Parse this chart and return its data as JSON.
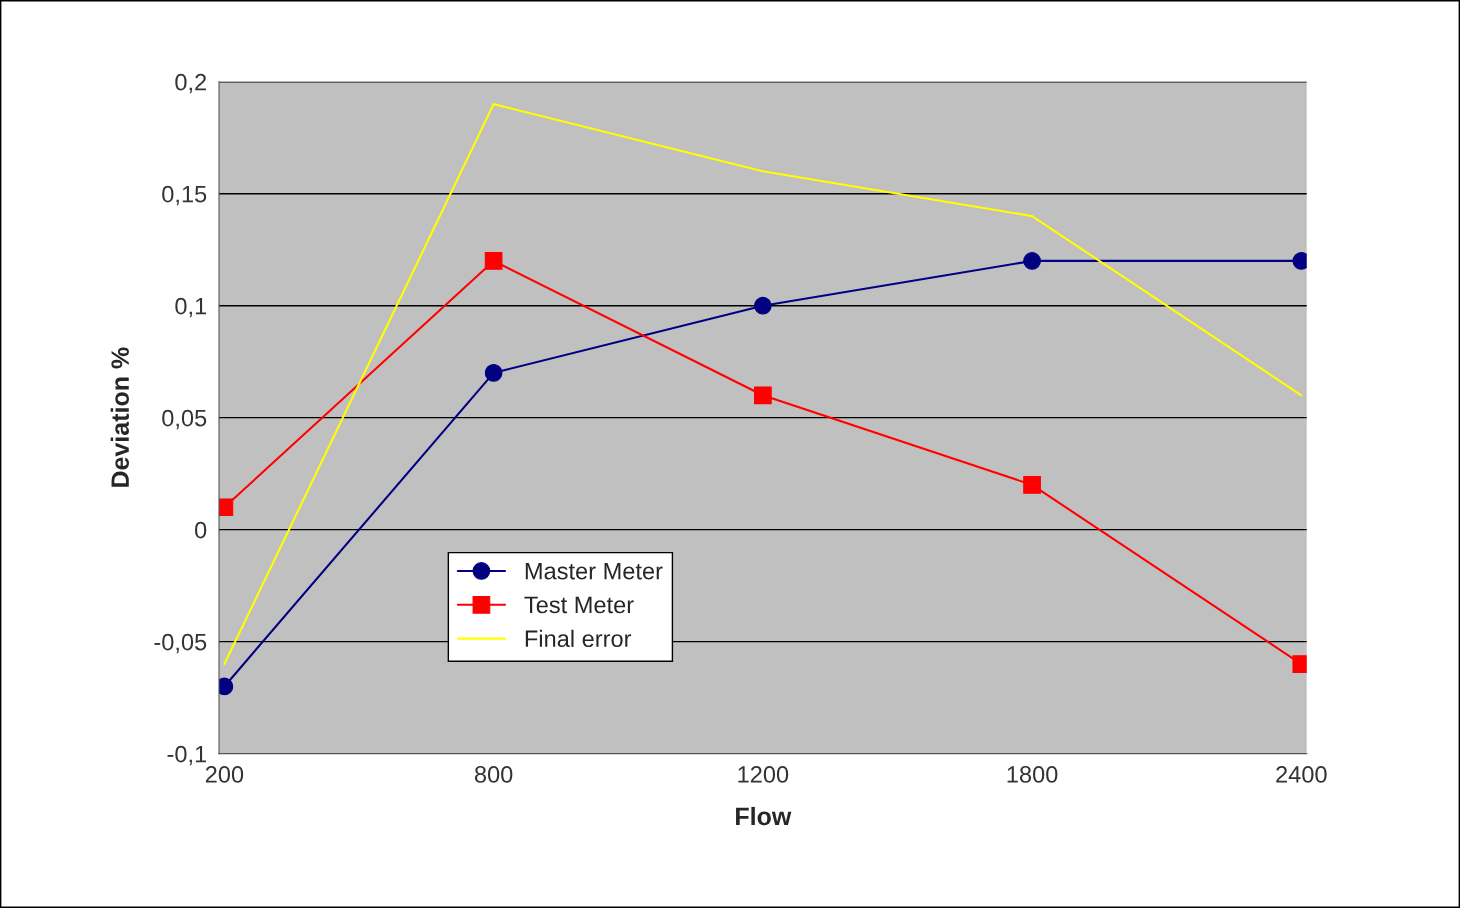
{
  "chart_data": {
    "type": "line",
    "xlabel": "Flow",
    "ylabel": "Deviation %",
    "categories": [
      "200",
      "800",
      "1200",
      "1800",
      "2400"
    ],
    "series": [
      {
        "name": "Master Meter",
        "color": "#000080",
        "marker": "circle",
        "values": [
          -0.07,
          0.07,
          0.1,
          0.12,
          0.12
        ]
      },
      {
        "name": "Test Meter",
        "color": "#ff0000",
        "marker": "square",
        "values": [
          0.01,
          0.12,
          0.06,
          0.02,
          -0.06
        ]
      },
      {
        "name": "Final error",
        "color": "#ffff00",
        "marker": "none",
        "values": [
          -0.06,
          0.19,
          0.16,
          0.14,
          0.06
        ]
      }
    ],
    "ylim": [
      -0.1,
      0.2
    ],
    "yticks": [
      {
        "value": -0.1,
        "label": "-0,1"
      },
      {
        "value": -0.05,
        "label": "-0,05"
      },
      {
        "value": 0,
        "label": "0"
      },
      {
        "value": 0.05,
        "label": "0,05"
      },
      {
        "value": 0.1,
        "label": "0,1"
      },
      {
        "value": 0.15,
        "label": "0,15"
      },
      {
        "value": 0.2,
        "label": "0,2"
      }
    ],
    "grid": "y",
    "legend": "bottom left"
  }
}
